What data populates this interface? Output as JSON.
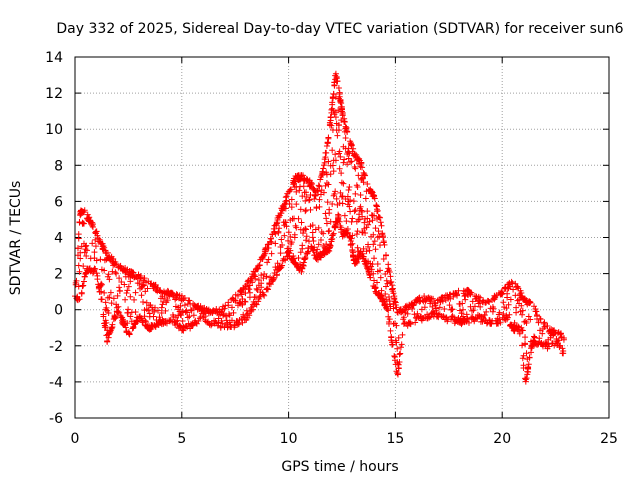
{
  "chart_data": {
    "type": "scatter",
    "title": "Day 332 of 2025, Sidereal Day-to-day VTEC variation (SDTVAR) for receiver sun6",
    "xlabel": "GPS time / hours",
    "ylabel": "SDTVAR / TECUs",
    "xlim": [
      0,
      25
    ],
    "ylim": [
      -6,
      14
    ],
    "x_ticks": [
      0,
      5,
      10,
      15,
      20,
      25
    ],
    "y_ticks": [
      -6,
      -4,
      -2,
      0,
      2,
      4,
      6,
      8,
      10,
      12,
      14
    ],
    "grid": true,
    "marker": "+",
    "series": [
      {
        "name": "SDTVAR",
        "color": "#ff0000",
        "envelope": {
          "x": [
            0.0,
            0.25,
            0.5,
            1.0,
            1.5,
            2.0,
            2.5,
            3.0,
            3.5,
            4.0,
            4.5,
            5.0,
            5.5,
            6.0,
            6.5,
            7.0,
            7.5,
            8.0,
            8.5,
            9.0,
            9.5,
            10.0,
            10.3,
            10.6,
            11.0,
            11.3,
            11.6,
            11.9,
            12.2,
            12.35,
            12.5,
            12.8,
            13.1,
            13.4,
            13.7,
            14.0,
            14.3,
            14.6,
            14.9,
            15.1,
            15.4,
            15.8,
            16.3,
            16.8,
            17.3,
            17.8,
            18.3,
            18.8,
            19.3,
            19.8,
            20.2,
            20.5,
            20.8,
            21.1,
            21.4,
            21.8,
            22.2,
            22.6,
            22.9
          ],
          "upper": [
            1.0,
            5.6,
            5.5,
            4.4,
            3.2,
            2.6,
            2.2,
            2.0,
            1.6,
            1.2,
            1.0,
            0.8,
            0.4,
            0.2,
            0.0,
            0.2,
            0.8,
            1.4,
            2.4,
            3.6,
            5.2,
            6.6,
            7.4,
            7.5,
            7.2,
            6.5,
            7.8,
            10.0,
            13.2,
            12.4,
            11.2,
            9.6,
            8.7,
            8.2,
            7.0,
            6.4,
            5.0,
            3.0,
            1.0,
            0.0,
            0.2,
            0.5,
            0.8,
            0.6,
            0.8,
            1.0,
            1.2,
            0.8,
            0.6,
            1.0,
            1.3,
            1.8,
            1.2,
            0.6,
            0.4,
            -0.4,
            -1.0,
            -1.2,
            -1.4
          ],
          "lower": [
            0.5,
            0.4,
            2.0,
            2.0,
            -1.8,
            -0.2,
            -1.5,
            -0.5,
            -1.2,
            -0.8,
            -0.8,
            -1.2,
            -1.0,
            -0.6,
            -1.0,
            -1.0,
            -1.0,
            -0.6,
            0.2,
            1.0,
            2.0,
            3.0,
            2.5,
            2.0,
            3.5,
            2.6,
            3.0,
            3.2,
            4.6,
            5.0,
            4.0,
            4.2,
            2.4,
            3.0,
            2.2,
            1.0,
            0.6,
            0.0,
            -2.6,
            -3.8,
            -1.0,
            -0.8,
            -0.6,
            -0.4,
            -0.6,
            -0.8,
            -0.8,
            -0.6,
            -0.8,
            -0.8,
            -0.6,
            -1.2,
            -1.2,
            -4.3,
            -2.0,
            -2.0,
            -2.2,
            -2.0,
            -2.6
          ]
        }
      }
    ]
  }
}
